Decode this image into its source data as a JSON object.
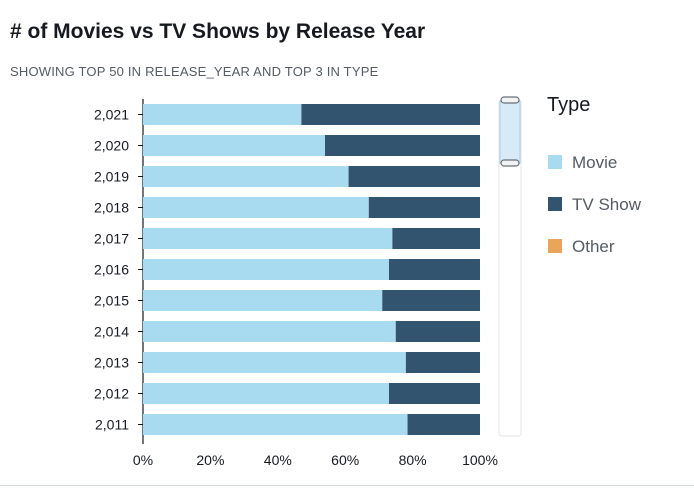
{
  "visual": {
    "title": "# of Movies vs TV Shows by Release Year",
    "subtitle": "SHOWING TOP 50 IN RELEASE_YEAR AND TOP 3 IN TYPE"
  },
  "legend": {
    "title": "Type",
    "items": [
      {
        "label": "Movie",
        "color": "#a8dbef"
      },
      {
        "label": "TV Show",
        "color": "#32546f"
      },
      {
        "label": "Other",
        "color": "#eba55b"
      }
    ]
  },
  "chart_data": {
    "type": "bar",
    "orientation": "horizontal",
    "stacked": "percent",
    "categories": [
      "2,021",
      "2,020",
      "2,019",
      "2,018",
      "2,017",
      "2,016",
      "2,015",
      "2,014",
      "2,013",
      "2,012",
      "2,011"
    ],
    "series": [
      {
        "name": "Movie",
        "color": "#a8dbef",
        "values": [
          0.47,
          0.54,
          0.61,
          0.67,
          0.74,
          0.73,
          0.71,
          0.75,
          0.78,
          0.73,
          0.785
        ]
      },
      {
        "name": "TV Show",
        "color": "#32546f",
        "values": [
          0.53,
          0.46,
          0.39,
          0.33,
          0.26,
          0.27,
          0.29,
          0.25,
          0.22,
          0.27,
          0.215
        ]
      }
    ],
    "x_ticks": [
      "0%",
      "20%",
      "40%",
      "60%",
      "80%",
      "100%"
    ],
    "xlim": [
      0,
      1
    ],
    "grid": false,
    "legend_position": "right"
  }
}
